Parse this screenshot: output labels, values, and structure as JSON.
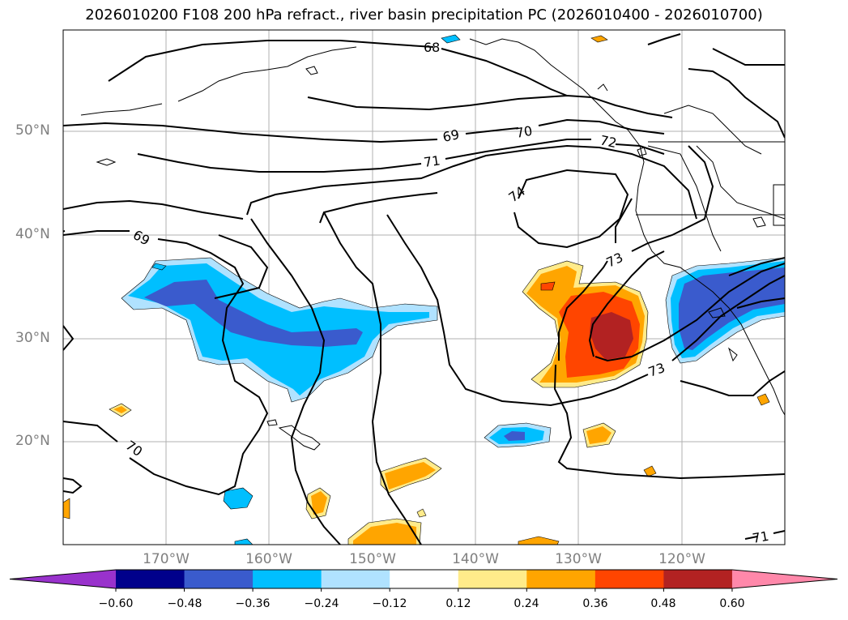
{
  "title": "2026010200 F108 200 hPa refract., river basin precipitation PC (2026010400 - 2026010700)",
  "lat_labels": [
    "50°N",
    "40°N",
    "30°N",
    "20°N"
  ],
  "lon_labels": [
    "170°W",
    "160°W",
    "150°W",
    "140°W",
    "130°W",
    "120°W"
  ],
  "contour_labels": [
    "68",
    "69",
    "70",
    "71",
    "72",
    "74",
    "73",
    "69",
    "70",
    "73",
    "71"
  ],
  "colorbar": {
    "ticks": [
      "−0.60",
      "−0.48",
      "−0.36",
      "−0.24",
      "−0.12",
      "0.12",
      "0.24",
      "0.36",
      "0.48",
      "0.60"
    ],
    "colors": [
      "#9932cc",
      "#00008b",
      "#3a5bcd",
      "#00bfff",
      "#b0e2ff",
      "#ffffff",
      "#ffeb8a",
      "#ffa500",
      "#ff4500",
      "#b22222",
      "#ff88aa"
    ]
  }
}
